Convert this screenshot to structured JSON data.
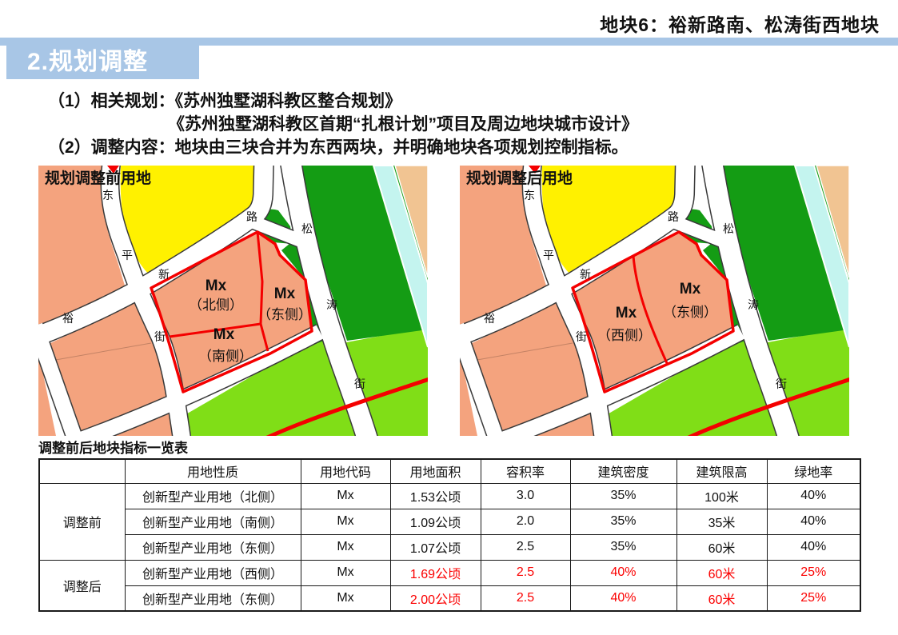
{
  "header": {
    "title": "地块6：裕新路南、松涛街西地块"
  },
  "section": {
    "badge": "2.规划调整"
  },
  "intro": {
    "line1": "（1）相关规划：《苏州独墅湖科教区整合规划》",
    "line2": "《苏州独墅湖科教区首期“扎根计划”项目及周边地块城市设计》",
    "line3": "（2）调整内容：地块由三块合并为东西两块，并明确地块各项规划控制指标。"
  },
  "maps": {
    "road_labels": {
      "dong": "东",
      "ping": "平",
      "jie": "街",
      "yu": "裕",
      "xin": "新",
      "lu": "路",
      "song": "松",
      "tao": "涛"
    },
    "before": {
      "title": "规划调整前用地",
      "parcels": [
        {
          "code": "Mx",
          "side": "（北侧）"
        },
        {
          "code": "Mx",
          "side": "（东侧）"
        },
        {
          "code": "Mx",
          "side": "（南侧）"
        }
      ]
    },
    "after": {
      "title": "规划调整后用地",
      "parcels": [
        {
          "code": "Mx",
          "side": "（西侧）"
        },
        {
          "code": "Mx",
          "side": "（东侧）"
        }
      ]
    }
  },
  "table": {
    "caption": "调整前后地块指标一览表",
    "headers": [
      "",
      "用地性质",
      "用地代码",
      "用地面积",
      "容积率",
      "建筑密度",
      "建筑限高",
      "绿地率"
    ],
    "groups": [
      {
        "label": "调整前",
        "highlight": false,
        "rows": [
          [
            "创新型产业用地（北侧）",
            "Mx",
            "1.53公顷",
            "3.0",
            "35%",
            "100米",
            "40%"
          ],
          [
            "创新型产业用地（南侧）",
            "Mx",
            "1.09公顷",
            "2.0",
            "35%",
            "35米",
            "40%"
          ],
          [
            "创新型产业用地（东侧）",
            "Mx",
            "1.07公顷",
            "2.5",
            "35%",
            "60米",
            "40%"
          ]
        ]
      },
      {
        "label": "调整后",
        "highlight": true,
        "rows": [
          [
            "创新型产业用地（西侧）",
            "Mx",
            "1.69公顷",
            "2.5",
            "40%",
            "60米",
            "25%"
          ],
          [
            "创新型产业用地（东侧）",
            "Mx",
            "2.00公顷",
            "2.5",
            "40%",
            "60米",
            "25%"
          ]
        ]
      }
    ]
  },
  "colors": {
    "accent_blue": "#a8c6e6",
    "highlight_red": "#fb0000",
    "parcel_outline_red": "#f40000",
    "map_salmon": "#f4a37e",
    "map_yellow": "#fff100",
    "map_dark_green": "#149c14",
    "map_bright_green": "#80de17",
    "map_cyan": "#c4f4ef",
    "map_tan": "#f1c492"
  }
}
